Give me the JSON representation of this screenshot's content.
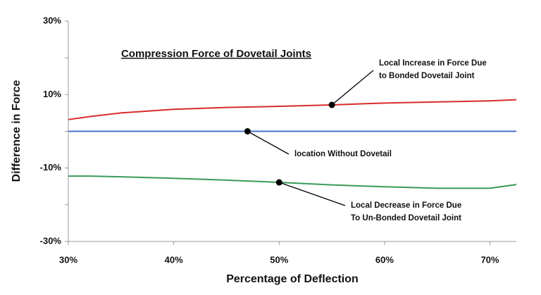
{
  "chart_data": {
    "type": "line",
    "title": "Compression Force of Dovetail Joints",
    "xlabel": "Percentage of Deflection",
    "ylabel": "Difference in Force",
    "xlim": [
      30,
      72.5
    ],
    "ylim": [
      -30,
      30
    ],
    "xticks": [
      {
        "value": 30,
        "label": "30%"
      },
      {
        "value": 40,
        "label": "40%"
      },
      {
        "value": 50,
        "label": "50%"
      },
      {
        "value": 60,
        "label": "60%"
      },
      {
        "value": 70,
        "label": "70%"
      }
    ],
    "yticks": [
      {
        "value": -30,
        "label": "-30%"
      },
      {
        "value": -20,
        "label": ""
      },
      {
        "value": -10,
        "label": "-10%"
      },
      {
        "value": 0,
        "label": ""
      },
      {
        "value": 10,
        "label": "10%"
      },
      {
        "value": 20,
        "label": ""
      },
      {
        "value": 30,
        "label": "30%"
      }
    ],
    "x": [
      30,
      32,
      35,
      40,
      45,
      50,
      55,
      60,
      65,
      70,
      72.5
    ],
    "series": [
      {
        "color": "#d92b2b",
        "values": [
          3.2,
          4.0,
          5.0,
          6.0,
          6.5,
          6.8,
          7.2,
          7.7,
          8.0,
          8.3,
          8.6
        ]
      },
      {
        "color": "#4a72c8",
        "values": [
          0,
          0,
          0,
          0,
          0,
          0,
          0,
          0,
          0,
          0,
          0
        ]
      },
      {
        "color": "#3a9a5a",
        "values": [
          -12.2,
          -12.2,
          -12.4,
          -12.8,
          -13.3,
          -13.9,
          -14.6,
          -15.1,
          -15.5,
          -15.5,
          -14.5
        ]
      }
    ],
    "annotations": [
      {
        "lines": [
          "Local Increase in Force Due",
          "to Bonded Dovetail Joint"
        ],
        "x": 55,
        "y": 7.2
      },
      {
        "lines": [
          "location Without Dovetail"
        ],
        "x": 47,
        "y": 0
      },
      {
        "lines": [
          "Local Decrease in Force Due",
          "To Un-Bonded Dovetail Joint"
        ],
        "x": 50,
        "y": -13.9
      }
    ]
  }
}
